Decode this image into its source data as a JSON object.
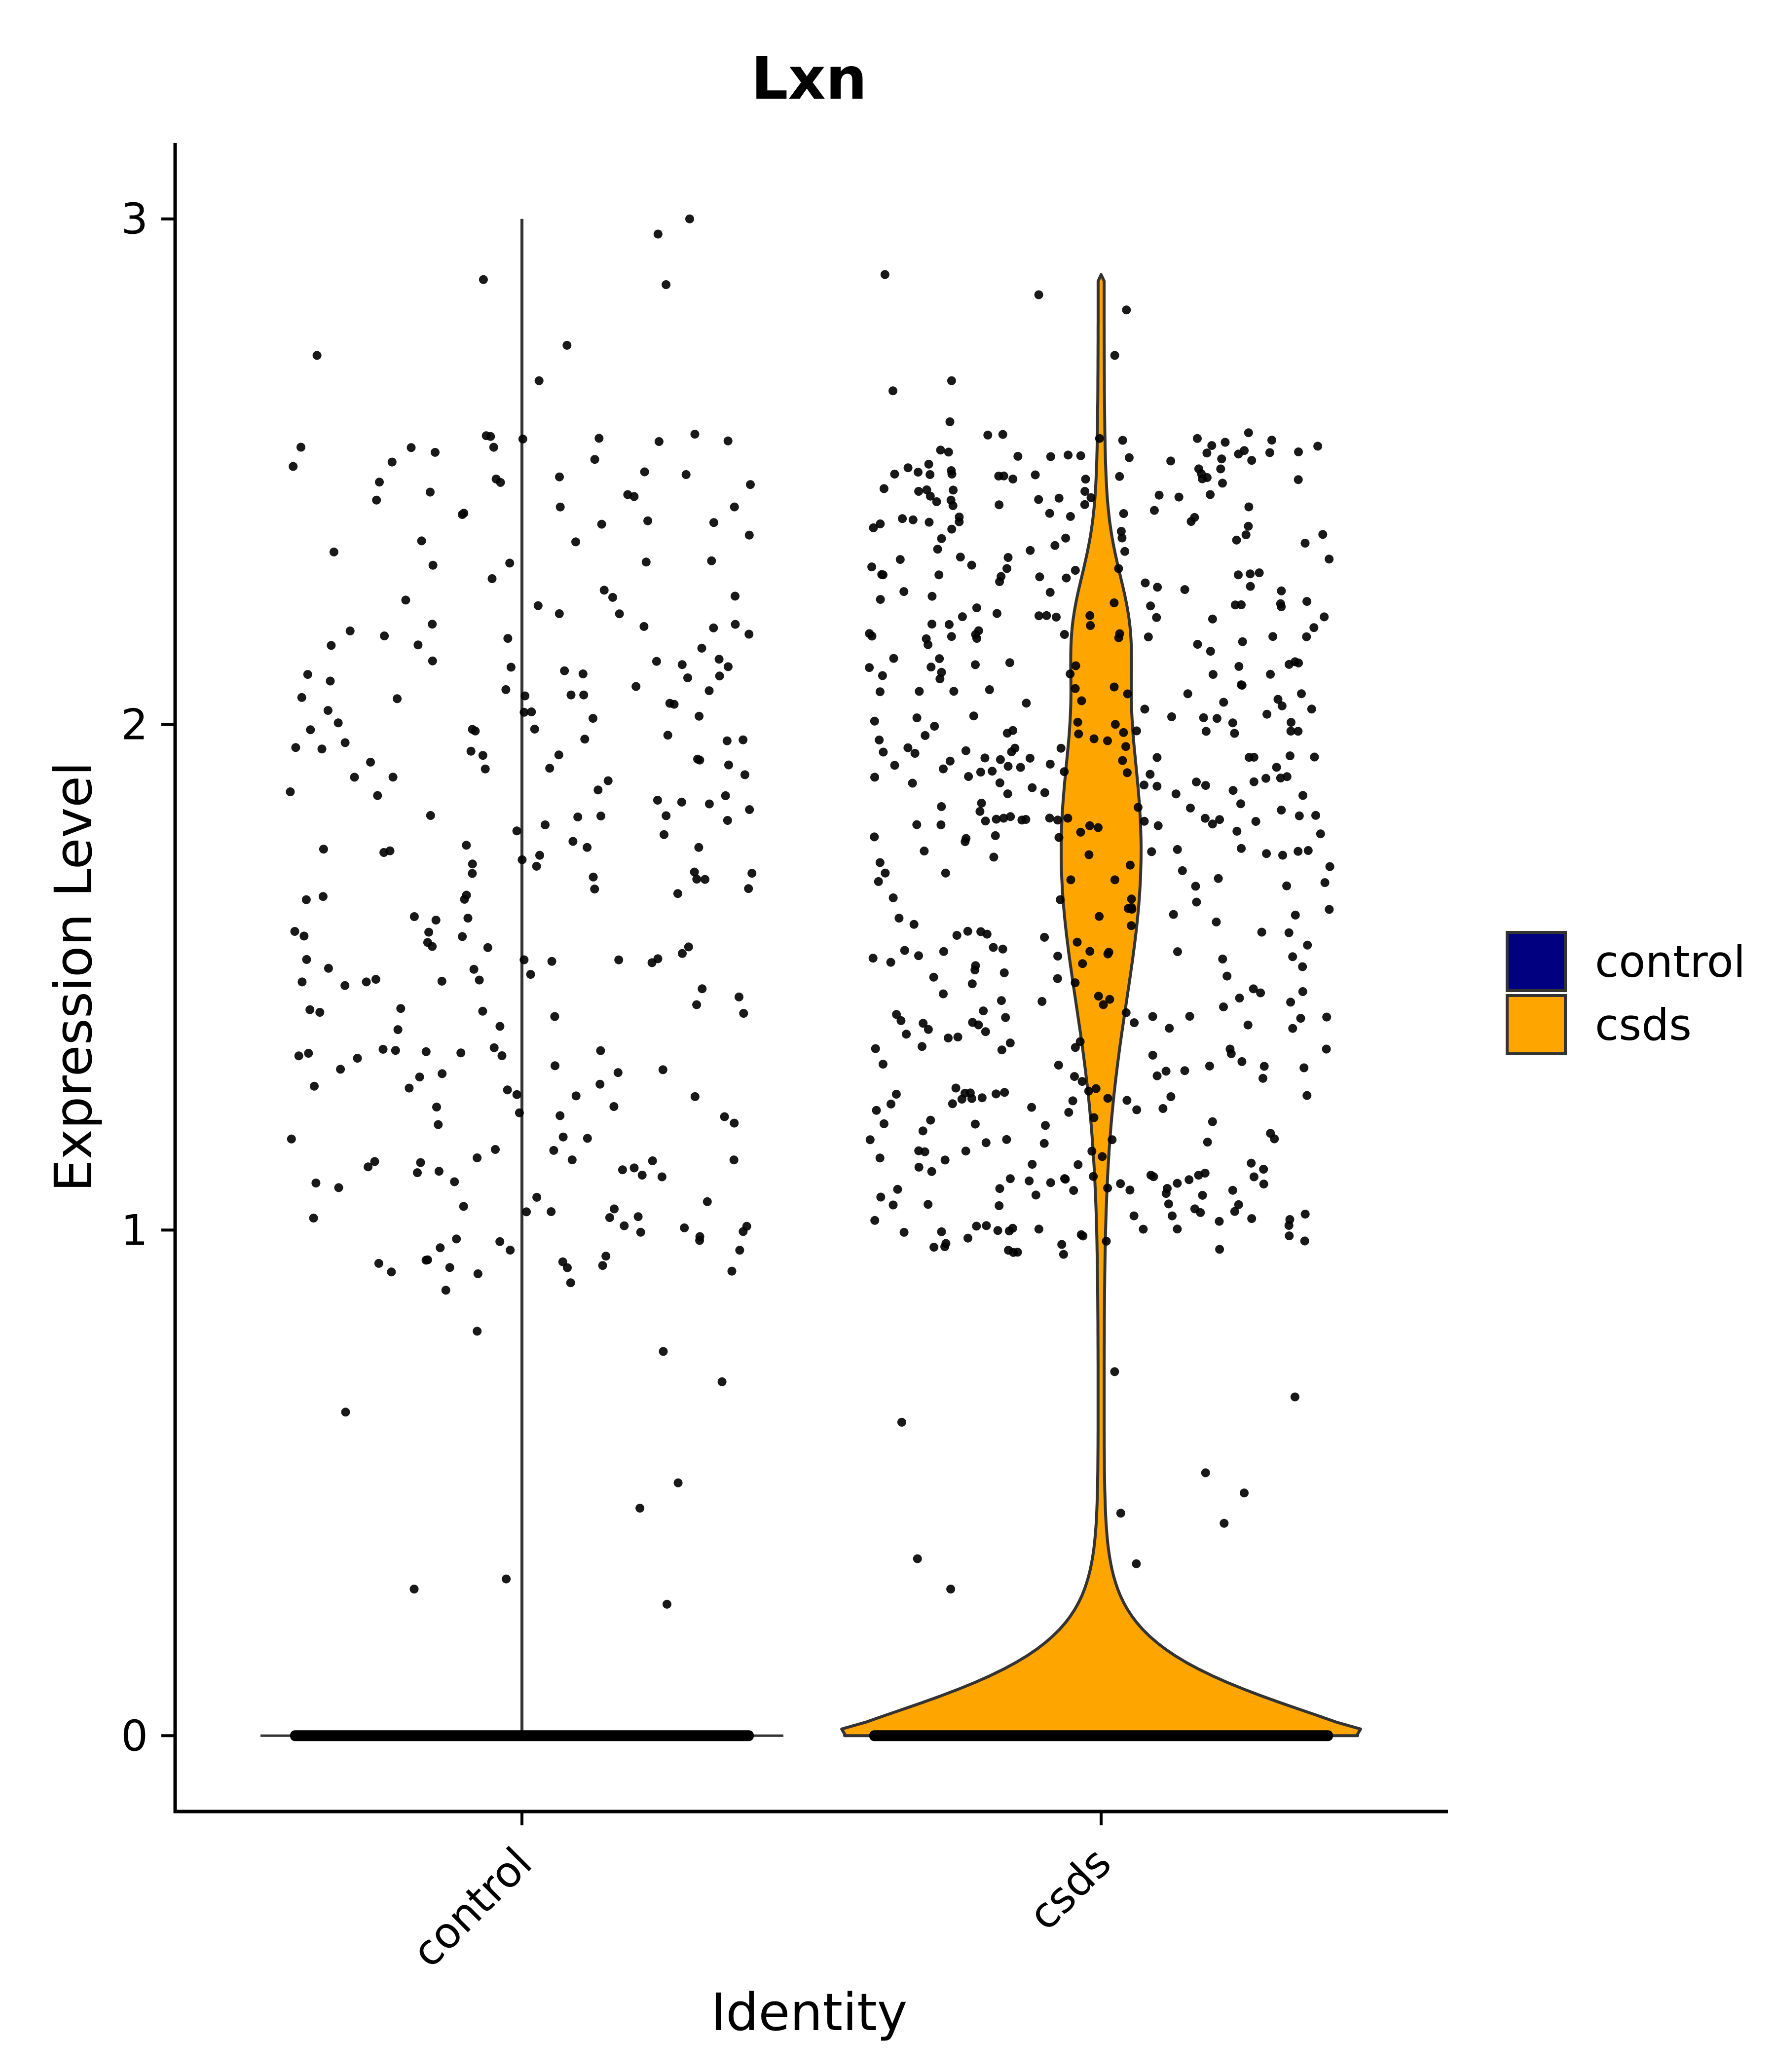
{
  "chart_data": {
    "type": "violin",
    "title": "Lxn",
    "xlabel": "Identity",
    "ylabel": "Expression Level",
    "categories": [
      "control",
      "csds"
    ],
    "yticks": [
      "0",
      "1",
      "2",
      "3"
    ],
    "ylim": [
      -0.15,
      3.15
    ],
    "legend": {
      "placement": "right",
      "entries": [
        {
          "label": "control",
          "color": "#000080"
        },
        {
          "label": "csds",
          "color": "#FFA500"
        }
      ]
    },
    "series": [
      {
        "name": "control",
        "color": "#000080",
        "zero_fraction": 0.62,
        "max_value": 3.0,
        "jitter_seed": 11,
        "nonzero_count": 290,
        "sample_values_near_max": [
          3.0,
          2.97,
          2.88,
          2.87,
          2.75,
          2.73,
          2.68
        ],
        "low_values": [
          0.5,
          0.45,
          0.31,
          0.29,
          0.26,
          0.64,
          0.7,
          0.76,
          0.8
        ]
      },
      {
        "name": "csds",
        "color": "#FFA500",
        "zero_fraction": 0.35,
        "max_value": 2.89,
        "jitter_seed": 29,
        "nonzero_count": 560,
        "sample_values_near_max": [
          2.89,
          2.85,
          2.82,
          2.73,
          2.68,
          2.66
        ],
        "low_values": [
          0.62,
          0.52,
          0.48,
          0.42,
          0.44,
          0.35,
          0.34,
          0.29,
          0.67,
          0.72
        ]
      }
    ]
  }
}
